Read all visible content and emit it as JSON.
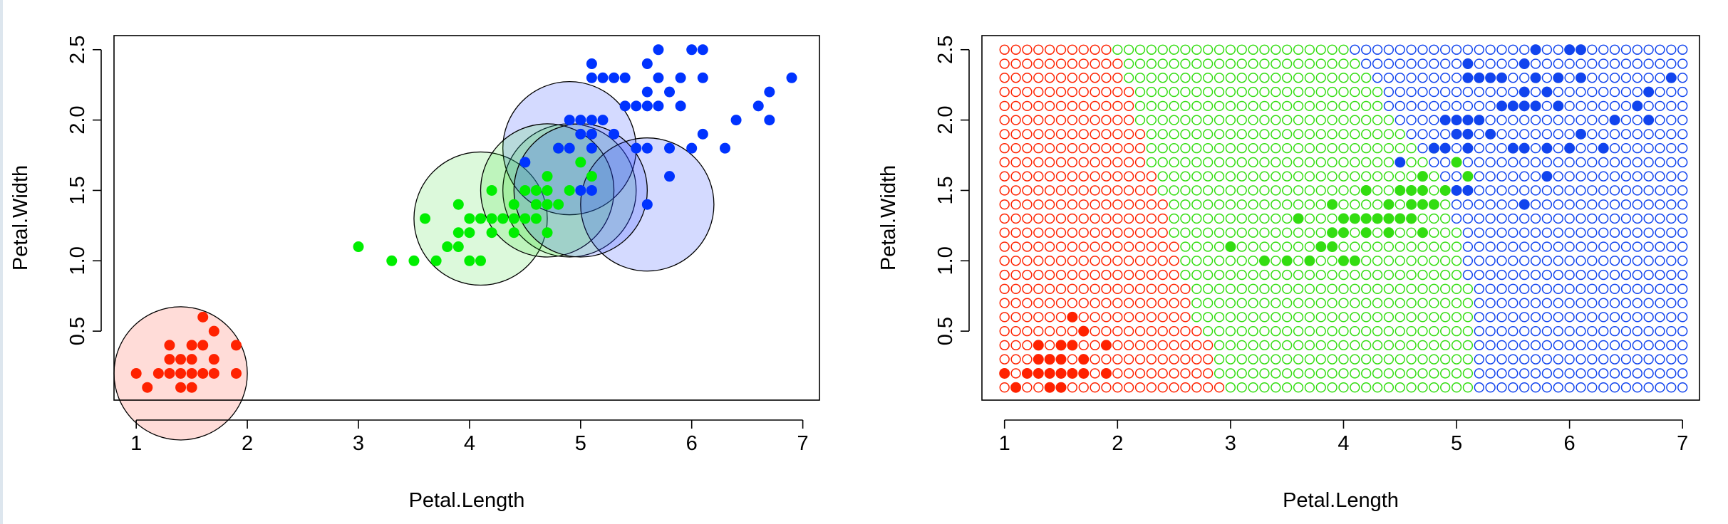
{
  "chart_data": [
    {
      "type": "scatter",
      "title": "",
      "xlabel": "Petal.Length",
      "ylabel": "Petal.Width",
      "xlim": [
        0.8,
        7.15
      ],
      "ylim": [
        0.01,
        2.6
      ],
      "xticks": [
        "1",
        "2",
        "3",
        "4",
        "5",
        "6",
        "7"
      ],
      "yticks": [
        "0.5",
        "1.0",
        "1.5",
        "2.0",
        "2.5"
      ],
      "colors": {
        "red": "#ff2200",
        "green": "#00ee00",
        "blue": "#0033ff"
      },
      "series": [
        {
          "color": "red",
          "points": [
            [
              1.0,
              0.2
            ],
            [
              1.1,
              0.1
            ],
            [
              1.2,
              0.2
            ],
            [
              1.3,
              0.2
            ],
            [
              1.3,
              0.3
            ],
            [
              1.3,
              0.4
            ],
            [
              1.4,
              0.1
            ],
            [
              1.4,
              0.2
            ],
            [
              1.4,
              0.3
            ],
            [
              1.5,
              0.1
            ],
            [
              1.5,
              0.2
            ],
            [
              1.5,
              0.3
            ],
            [
              1.5,
              0.4
            ],
            [
              1.6,
              0.2
            ],
            [
              1.6,
              0.4
            ],
            [
              1.6,
              0.6
            ],
            [
              1.7,
              0.2
            ],
            [
              1.7,
              0.3
            ],
            [
              1.7,
              0.5
            ],
            [
              1.9,
              0.2
            ],
            [
              1.9,
              0.4
            ]
          ]
        },
        {
          "color": "green",
          "points": [
            [
              3.0,
              1.1
            ],
            [
              3.3,
              1.0
            ],
            [
              3.5,
              1.0
            ],
            [
              3.6,
              1.3
            ],
            [
              3.7,
              1.0
            ],
            [
              3.8,
              1.1
            ],
            [
              3.9,
              1.1
            ],
            [
              3.9,
              1.2
            ],
            [
              3.9,
              1.4
            ],
            [
              4.0,
              1.0
            ],
            [
              4.0,
              1.2
            ],
            [
              4.0,
              1.3
            ],
            [
              4.1,
              1.0
            ],
            [
              4.1,
              1.3
            ],
            [
              4.2,
              1.2
            ],
            [
              4.2,
              1.3
            ],
            [
              4.2,
              1.5
            ],
            [
              4.3,
              1.3
            ],
            [
              4.4,
              1.2
            ],
            [
              4.4,
              1.3
            ],
            [
              4.4,
              1.4
            ],
            [
              4.5,
              1.3
            ],
            [
              4.5,
              1.5
            ],
            [
              4.6,
              1.3
            ],
            [
              4.6,
              1.4
            ],
            [
              4.6,
              1.5
            ],
            [
              4.7,
              1.2
            ],
            [
              4.7,
              1.4
            ],
            [
              4.7,
              1.5
            ],
            [
              4.7,
              1.6
            ],
            [
              4.8,
              1.4
            ],
            [
              4.8,
              1.8
            ],
            [
              4.9,
              1.5
            ],
            [
              5.0,
              1.7
            ],
            [
              5.1,
              1.6
            ]
          ]
        },
        {
          "color": "blue",
          "points": [
            [
              4.5,
              1.7
            ],
            [
              4.8,
              1.8
            ],
            [
              4.9,
              1.8
            ],
            [
              4.9,
              2.0
            ],
            [
              5.0,
              1.5
            ],
            [
              5.0,
              1.9
            ],
            [
              5.0,
              2.0
            ],
            [
              5.1,
              1.5
            ],
            [
              5.1,
              1.8
            ],
            [
              5.1,
              1.9
            ],
            [
              5.1,
              2.0
            ],
            [
              5.1,
              2.3
            ],
            [
              5.1,
              2.4
            ],
            [
              5.2,
              2.0
            ],
            [
              5.2,
              2.3
            ],
            [
              5.3,
              1.9
            ],
            [
              5.3,
              2.3
            ],
            [
              5.4,
              2.1
            ],
            [
              5.4,
              2.3
            ],
            [
              5.5,
              1.8
            ],
            [
              5.5,
              2.1
            ],
            [
              5.6,
              1.4
            ],
            [
              5.6,
              1.8
            ],
            [
              5.6,
              2.1
            ],
            [
              5.6,
              2.2
            ],
            [
              5.6,
              2.4
            ],
            [
              5.7,
              2.1
            ],
            [
              5.7,
              2.3
            ],
            [
              5.7,
              2.5
            ],
            [
              5.8,
              1.6
            ],
            [
              5.8,
              1.8
            ],
            [
              5.8,
              2.2
            ],
            [
              5.9,
              2.1
            ],
            [
              5.9,
              2.3
            ],
            [
              6.0,
              1.8
            ],
            [
              6.0,
              2.5
            ],
            [
              6.1,
              1.9
            ],
            [
              6.1,
              2.3
            ],
            [
              6.1,
              2.5
            ],
            [
              6.3,
              1.8
            ],
            [
              6.4,
              2.0
            ],
            [
              6.6,
              2.1
            ],
            [
              6.7,
              2.0
            ],
            [
              6.7,
              2.2
            ],
            [
              6.9,
              2.3
            ]
          ]
        }
      ],
      "circles": [
        {
          "color": "red",
          "cx": 1.4,
          "cy": 0.2,
          "r": 0.6
        },
        {
          "color": "green",
          "cx": 4.1,
          "cy": 1.3,
          "r": 0.6
        },
        {
          "color": "green",
          "cx": 4.9,
          "cy": 1.5,
          "r": 0.6
        },
        {
          "color": "blue",
          "cx": 4.9,
          "cy": 1.8,
          "r": 0.6
        },
        {
          "color": "green",
          "cx": 4.7,
          "cy": 1.5,
          "r": 0.6
        },
        {
          "color": "blue",
          "cx": 5.6,
          "cy": 1.4,
          "r": 0.6
        },
        {
          "color": "blue",
          "cx": 5.0,
          "cy": 1.5,
          "r": 0.6
        }
      ]
    },
    {
      "type": "scatter",
      "title": "",
      "xlabel": "Petal.Length",
      "ylabel": "Petal.Width",
      "xlim": [
        0.8,
        7.15
      ],
      "ylim": [
        0.01,
        2.6
      ],
      "xticks": [
        "1",
        "2",
        "3",
        "4",
        "5",
        "6",
        "7"
      ],
      "yticks": [
        "0.5",
        "1.0",
        "1.5",
        "2.0",
        "2.5"
      ],
      "colors": {
        "red": "#ff2200",
        "green": "#33dd11",
        "blue": "#1144ee"
      },
      "grid": {
        "x_start": 1.0,
        "x_step": 0.1,
        "x_count": 61,
        "y_start": 0.1,
        "y_step": 0.1,
        "y_count": 25
      },
      "boundaries": {
        "red_green_x_by_row": [
          3.0,
          2.9,
          2.9,
          2.9,
          2.8,
          2.7,
          2.7,
          2.7,
          2.6,
          2.6,
          2.6,
          2.5,
          2.5,
          2.5,
          2.4,
          2.4,
          2.3,
          2.3,
          2.3,
          2.2,
          2.2,
          2.2,
          2.1,
          2.1,
          2.0
        ],
        "green_blue_x_by_row": [
          5.2,
          5.2,
          5.2,
          5.2,
          5.2,
          5.2,
          5.2,
          5.2,
          5.1,
          5.1,
          5.1,
          5.1,
          5.0,
          5.0,
          5.0,
          4.9,
          4.8,
          4.7,
          4.6,
          4.5,
          4.4,
          4.4,
          4.3,
          4.2,
          4.1
        ]
      },
      "series": [
        {
          "color": "red",
          "points": [
            [
              1.0,
              0.2
            ],
            [
              1.1,
              0.1
            ],
            [
              1.2,
              0.2
            ],
            [
              1.3,
              0.2
            ],
            [
              1.3,
              0.3
            ],
            [
              1.3,
              0.4
            ],
            [
              1.4,
              0.1
            ],
            [
              1.4,
              0.2
            ],
            [
              1.4,
              0.3
            ],
            [
              1.5,
              0.1
            ],
            [
              1.5,
              0.2
            ],
            [
              1.5,
              0.3
            ],
            [
              1.5,
              0.4
            ],
            [
              1.6,
              0.2
            ],
            [
              1.6,
              0.4
            ],
            [
              1.6,
              0.6
            ],
            [
              1.7,
              0.2
            ],
            [
              1.7,
              0.3
            ],
            [
              1.7,
              0.5
            ],
            [
              1.9,
              0.2
            ],
            [
              1.9,
              0.4
            ]
          ]
        },
        {
          "color": "green",
          "points": [
            [
              3.0,
              1.1
            ],
            [
              3.3,
              1.0
            ],
            [
              3.5,
              1.0
            ],
            [
              3.6,
              1.3
            ],
            [
              3.7,
              1.0
            ],
            [
              3.8,
              1.1
            ],
            [
              3.9,
              1.1
            ],
            [
              3.9,
              1.2
            ],
            [
              3.9,
              1.4
            ],
            [
              4.0,
              1.0
            ],
            [
              4.0,
              1.2
            ],
            [
              4.0,
              1.3
            ],
            [
              4.1,
              1.0
            ],
            [
              4.1,
              1.3
            ],
            [
              4.2,
              1.2
            ],
            [
              4.2,
              1.3
            ],
            [
              4.2,
              1.5
            ],
            [
              4.3,
              1.3
            ],
            [
              4.4,
              1.2
            ],
            [
              4.4,
              1.3
            ],
            [
              4.4,
              1.4
            ],
            [
              4.5,
              1.3
            ],
            [
              4.5,
              1.5
            ],
            [
              4.6,
              1.3
            ],
            [
              4.6,
              1.4
            ],
            [
              4.6,
              1.5
            ],
            [
              4.7,
              1.2
            ],
            [
              4.7,
              1.4
            ],
            [
              4.7,
              1.5
            ],
            [
              4.7,
              1.6
            ],
            [
              4.8,
              1.4
            ],
            [
              4.8,
              1.8
            ],
            [
              4.9,
              1.5
            ],
            [
              5.0,
              1.7
            ],
            [
              5.1,
              1.6
            ]
          ]
        },
        {
          "color": "blue",
          "points": [
            [
              4.5,
              1.7
            ],
            [
              4.8,
              1.8
            ],
            [
              4.9,
              1.8
            ],
            [
              4.9,
              2.0
            ],
            [
              5.0,
              1.5
            ],
            [
              5.0,
              1.9
            ],
            [
              5.0,
              2.0
            ],
            [
              5.1,
              1.5
            ],
            [
              5.1,
              1.8
            ],
            [
              5.1,
              1.9
            ],
            [
              5.1,
              2.0
            ],
            [
              5.1,
              2.3
            ],
            [
              5.1,
              2.4
            ],
            [
              5.2,
              2.0
            ],
            [
              5.2,
              2.3
            ],
            [
              5.3,
              1.9
            ],
            [
              5.3,
              2.3
            ],
            [
              5.4,
              2.1
            ],
            [
              5.4,
              2.3
            ],
            [
              5.5,
              1.8
            ],
            [
              5.5,
              2.1
            ],
            [
              5.6,
              1.4
            ],
            [
              5.6,
              1.8
            ],
            [
              5.6,
              2.1
            ],
            [
              5.6,
              2.2
            ],
            [
              5.6,
              2.4
            ],
            [
              5.7,
              2.1
            ],
            [
              5.7,
              2.3
            ],
            [
              5.7,
              2.5
            ],
            [
              5.8,
              1.6
            ],
            [
              5.8,
              1.8
            ],
            [
              5.8,
              2.2
            ],
            [
              5.9,
              2.1
            ],
            [
              5.9,
              2.3
            ],
            [
              6.0,
              1.8
            ],
            [
              6.0,
              2.5
            ],
            [
              6.1,
              1.9
            ],
            [
              6.1,
              2.3
            ],
            [
              6.1,
              2.5
            ],
            [
              6.3,
              1.8
            ],
            [
              6.4,
              2.0
            ],
            [
              6.6,
              2.1
            ],
            [
              6.7,
              2.0
            ],
            [
              6.7,
              2.2
            ],
            [
              6.9,
              2.3
            ]
          ]
        }
      ]
    }
  ]
}
